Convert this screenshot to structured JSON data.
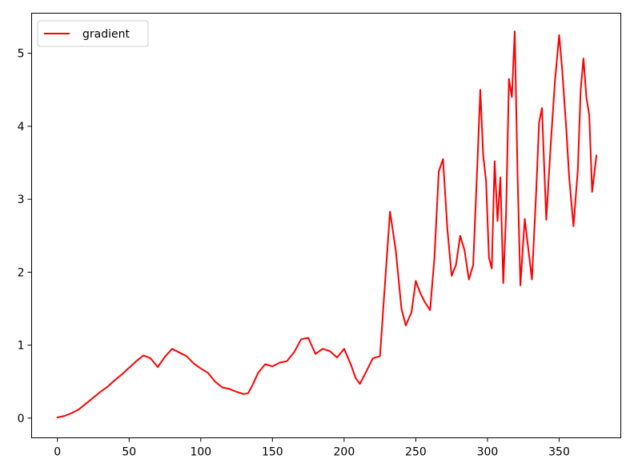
{
  "chart_data": {
    "type": "line",
    "title": "",
    "xlabel": "",
    "ylabel": "",
    "xlim": [
      -18,
      393
    ],
    "ylim": [
      -0.27,
      5.55
    ],
    "x_ticks": [
      0,
      50,
      100,
      150,
      200,
      250,
      300,
      350
    ],
    "y_ticks": [
      0,
      1,
      2,
      3,
      4,
      5
    ],
    "grid": false,
    "legend": {
      "position": "top-left",
      "entries": [
        "gradient"
      ]
    },
    "series": [
      {
        "name": "gradient",
        "color": "#ff0000",
        "points": [
          [
            0,
            0.01
          ],
          [
            5,
            0.03
          ],
          [
            10,
            0.07
          ],
          [
            15,
            0.12
          ],
          [
            20,
            0.2
          ],
          [
            25,
            0.28
          ],
          [
            30,
            0.36
          ],
          [
            35,
            0.43
          ],
          [
            40,
            0.52
          ],
          [
            45,
            0.6
          ],
          [
            50,
            0.69
          ],
          [
            55,
            0.78
          ],
          [
            60,
            0.86
          ],
          [
            65,
            0.82
          ],
          [
            70,
            0.7
          ],
          [
            75,
            0.84
          ],
          [
            80,
            0.95
          ],
          [
            85,
            0.9
          ],
          [
            90,
            0.85
          ],
          [
            95,
            0.75
          ],
          [
            100,
            0.68
          ],
          [
            105,
            0.62
          ],
          [
            110,
            0.5
          ],
          [
            115,
            0.42
          ],
          [
            120,
            0.4
          ],
          [
            125,
            0.36
          ],
          [
            130,
            0.33
          ],
          [
            133,
            0.34
          ],
          [
            136,
            0.45
          ],
          [
            140,
            0.62
          ],
          [
            145,
            0.74
          ],
          [
            150,
            0.71
          ],
          [
            155,
            0.76
          ],
          [
            160,
            0.78
          ],
          [
            165,
            0.9
          ],
          [
            170,
            1.08
          ],
          [
            175,
            1.1
          ],
          [
            180,
            0.88
          ],
          [
            185,
            0.95
          ],
          [
            190,
            0.92
          ],
          [
            195,
            0.83
          ],
          [
            200,
            0.95
          ],
          [
            205,
            0.72
          ],
          [
            208,
            0.55
          ],
          [
            211,
            0.47
          ],
          [
            215,
            0.62
          ],
          [
            220,
            0.82
          ],
          [
            225,
            0.85
          ],
          [
            228,
            1.7
          ],
          [
            232,
            2.83
          ],
          [
            236,
            2.3
          ],
          [
            240,
            1.5
          ],
          [
            243,
            1.27
          ],
          [
            247,
            1.45
          ],
          [
            250,
            1.88
          ],
          [
            253,
            1.72
          ],
          [
            256,
            1.6
          ],
          [
            260,
            1.48
          ],
          [
            263,
            2.2
          ],
          [
            266,
            3.38
          ],
          [
            269,
            3.55
          ],
          [
            272,
            2.6
          ],
          [
            275,
            1.95
          ],
          [
            278,
            2.1
          ],
          [
            281,
            2.5
          ],
          [
            284,
            2.3
          ],
          [
            287,
            1.9
          ],
          [
            290,
            2.1
          ],
          [
            293,
            3.5
          ],
          [
            295,
            4.5
          ],
          [
            297,
            3.6
          ],
          [
            299,
            3.25
          ],
          [
            301,
            2.2
          ],
          [
            303,
            2.05
          ],
          [
            305,
            3.52
          ],
          [
            307,
            2.7
          ],
          [
            309,
            3.3
          ],
          [
            311,
            1.85
          ],
          [
            313,
            2.8
          ],
          [
            315,
            4.65
          ],
          [
            317,
            4.4
          ],
          [
            319,
            5.3
          ],
          [
            321,
            3.3
          ],
          [
            323,
            1.82
          ],
          [
            326,
            2.73
          ],
          [
            328,
            2.4
          ],
          [
            331,
            1.9
          ],
          [
            334,
            3.1
          ],
          [
            336,
            4.05
          ],
          [
            338,
            4.25
          ],
          [
            341,
            2.72
          ],
          [
            344,
            3.72
          ],
          [
            347,
            4.6
          ],
          [
            350,
            5.25
          ],
          [
            352,
            4.8
          ],
          [
            355,
            3.95
          ],
          [
            357,
            3.3
          ],
          [
            360,
            2.63
          ],
          [
            363,
            3.4
          ],
          [
            365,
            4.5
          ],
          [
            367,
            4.93
          ],
          [
            369,
            4.4
          ],
          [
            371,
            4.15
          ],
          [
            373,
            3.1
          ],
          [
            376,
            3.6
          ]
        ]
      }
    ]
  }
}
